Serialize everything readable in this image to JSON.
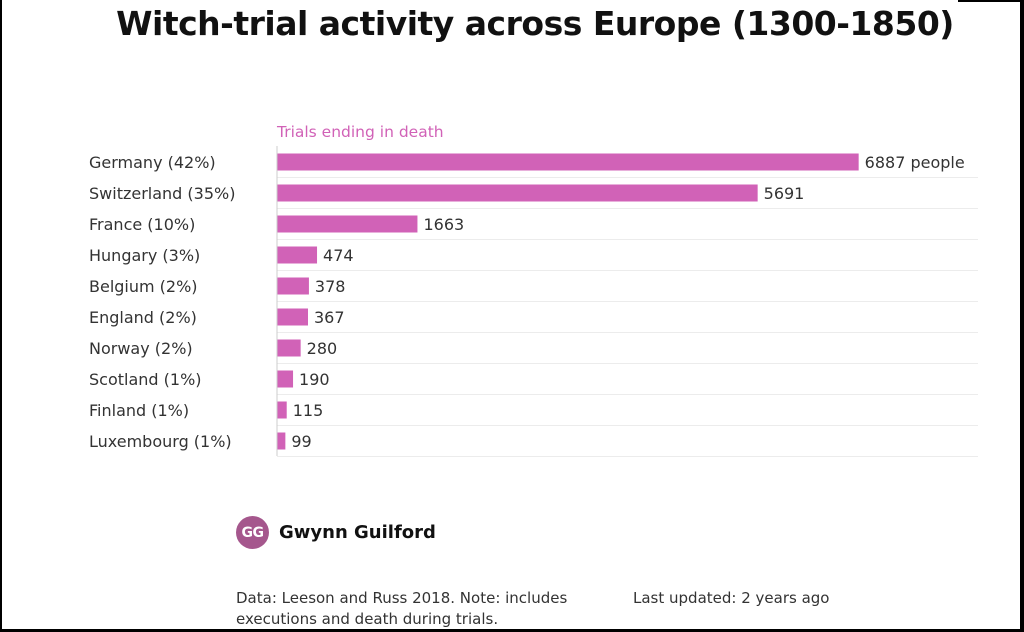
{
  "chart_data": {
    "type": "bar",
    "orientation": "horizontal",
    "title": "Witch-trial activity across Europe (1300-1850)",
    "series_label": "Trials ending in death",
    "categories": [
      "Germany (42%)",
      "Switzerland (35%)",
      "France (10%)",
      "Hungary (3%)",
      "Belgium (2%)",
      "England (2%)",
      "Norway (2%)",
      "Scotland (1%)",
      "Finland (1%)",
      "Luxembourg (1%)"
    ],
    "values": [
      6887,
      5691,
      1663,
      474,
      378,
      367,
      280,
      190,
      115,
      99
    ],
    "value_labels": [
      "6887 people",
      "5691",
      "1663",
      "474",
      "378",
      "367",
      "280",
      "190",
      "115",
      "99"
    ],
    "xlim": [
      0,
      8300
    ],
    "grid": true,
    "bar_color": "#d162b7"
  },
  "author": {
    "initials": "GG",
    "name": "Gwynn Guilford"
  },
  "footer": {
    "source": "Data: Leeson and Russ 2018. Note: includes executions and death during trials.",
    "updated": "Last updated: 2 years ago"
  }
}
